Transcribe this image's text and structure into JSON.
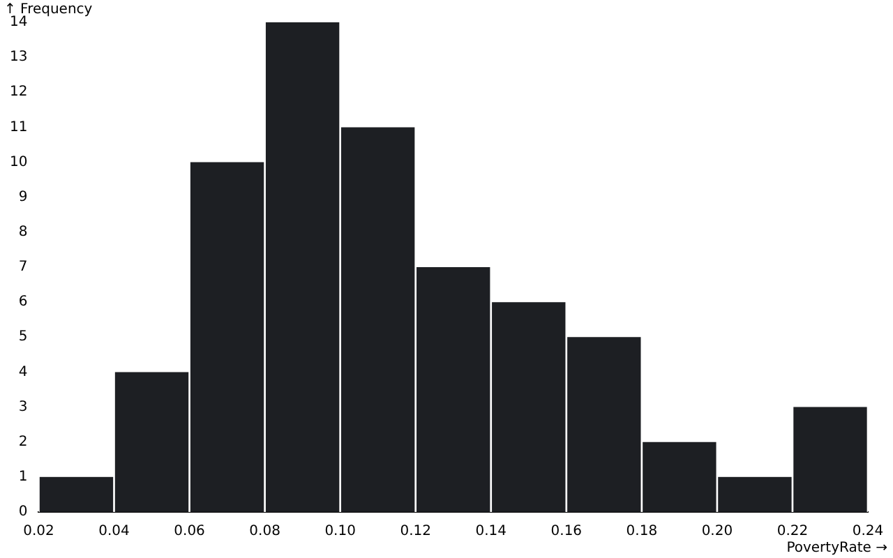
{
  "chart_data": {
    "type": "histogram",
    "xlabel": "PovertyRate →",
    "ylabel": "↑ Frequency",
    "bins": [
      0.02,
      0.04,
      0.06,
      0.08,
      0.1,
      0.12,
      0.14,
      0.16,
      0.18,
      0.2,
      0.22,
      0.24
    ],
    "values": [
      1,
      4,
      10,
      14,
      11,
      7,
      6,
      5,
      2,
      1,
      3
    ],
    "color": "#1d1f23",
    "xlim": [
      0.02,
      0.24
    ],
    "xticks": [
      0.02,
      0.04,
      0.06,
      0.08,
      {
        "value": 0.1,
        "label": "0.10"
      },
      0.12,
      0.14,
      0.16,
      0.18,
      {
        "value": 0.2,
        "label": "0.20"
      },
      0.22,
      0.24
    ],
    "ylim": [
      0,
      14
    ],
    "yticks": [
      0,
      1,
      2,
      3,
      4,
      5,
      6,
      7,
      8,
      9,
      10,
      11,
      12,
      13,
      14
    ]
  }
}
